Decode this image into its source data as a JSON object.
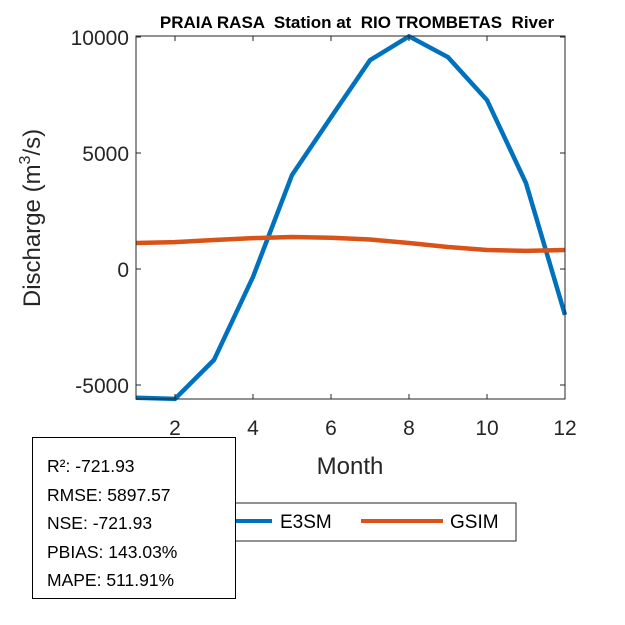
{
  "chart_data": {
    "type": "line",
    "title": "PRAIA RASA  Station at  RIO TROMBETAS  River",
    "xlabel": "Month",
    "ylabel": "Discharge (m",
    "ylabel_sup": "3",
    "ylabel_tail": "/s)",
    "x": [
      1,
      2,
      3,
      4,
      5,
      6,
      7,
      8,
      9,
      10,
      11,
      12
    ],
    "xlim": [
      1,
      12
    ],
    "ylim": [
      -5600,
      10000
    ],
    "xticks": [
      2,
      4,
      6,
      8,
      10,
      12
    ],
    "xtick_labels": [
      "2",
      "4",
      "6",
      "8",
      "10",
      "12"
    ],
    "yticks": [
      -5000,
      0,
      5000,
      10000
    ],
    "ytick_labels": [
      "-5000",
      "0",
      "5000",
      "10000"
    ],
    "grid": false,
    "legend_placement": "bottom-outside",
    "series": [
      {
        "name": "E3SM",
        "color": "#0072BD",
        "values": [
          -5550,
          -5600,
          -3920,
          -340,
          4050,
          6540,
          9000,
          10030,
          9130,
          7280,
          3700,
          -1980
        ]
      },
      {
        "name": "GSIM",
        "color": "#D95319",
        "values": [
          1120,
          1160,
          1250,
          1330,
          1380,
          1350,
          1270,
          1120,
          950,
          820,
          780,
          820
        ]
      }
    ]
  },
  "stats": {
    "lines": [
      "R²: -721.93",
      "RMSE: 5897.57",
      "NSE: -721.93",
      "PBIAS: 143.03%",
      "MAPE: 511.91%"
    ]
  }
}
